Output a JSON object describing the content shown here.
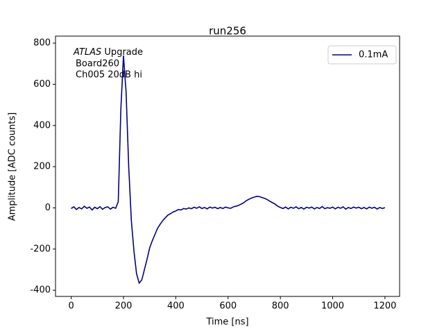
{
  "chart_data": {
    "type": "line",
    "title": "run256",
    "xlabel": "Time [ns]",
    "ylabel": "Amplitude [ADC counts]",
    "annotation": {
      "italic": "ATLAS",
      "text": "Upgrade",
      "lines": [
        "Board260",
        "Ch005 20dB hi"
      ]
    },
    "x": [
      0,
      10,
      20,
      30,
      40,
      50,
      60,
      70,
      80,
      90,
      100,
      110,
      120,
      130,
      140,
      150,
      160,
      170,
      180,
      190,
      200,
      210,
      220,
      230,
      240,
      250,
      260,
      270,
      280,
      290,
      300,
      310,
      320,
      330,
      340,
      350,
      360,
      370,
      380,
      390,
      400,
      410,
      420,
      430,
      440,
      450,
      460,
      470,
      480,
      490,
      500,
      510,
      520,
      530,
      540,
      550,
      560,
      570,
      580,
      590,
      600,
      610,
      620,
      630,
      640,
      650,
      660,
      670,
      680,
      690,
      700,
      710,
      720,
      730,
      740,
      750,
      760,
      770,
      780,
      790,
      800,
      810,
      820,
      830,
      840,
      850,
      860,
      870,
      880,
      890,
      900,
      910,
      920,
      930,
      940,
      950,
      960,
      970,
      980,
      990,
      1000,
      1010,
      1020,
      1030,
      1040,
      1050,
      1060,
      1070,
      1080,
      1090,
      1100,
      1110,
      1120,
      1130,
      1140,
      1150,
      1160,
      1170,
      1180,
      1190,
      1200
    ],
    "series": [
      {
        "name": "0.1mA",
        "color": "#000080",
        "values": [
          -3,
          5,
          -8,
          2,
          -5,
          8,
          -2,
          4,
          -10,
          3,
          -4,
          6,
          -7,
          2,
          5,
          -6,
          3,
          -2,
          30,
          480,
          740,
          560,
          200,
          -60,
          -210,
          -320,
          -365,
          -350,
          -300,
          -250,
          -195,
          -160,
          -130,
          -100,
          -80,
          -62,
          -48,
          -35,
          -28,
          -20,
          -15,
          -8,
          -10,
          -3,
          -6,
          0,
          -4,
          3,
          -2,
          5,
          -3,
          2,
          -5,
          4,
          -1,
          3,
          -4,
          2,
          -3,
          4,
          0,
          -2,
          5,
          8,
          12,
          18,
          25,
          35,
          42,
          48,
          52,
          56,
          55,
          50,
          46,
          40,
          32,
          25,
          18,
          8,
          2,
          -3,
          4,
          -5,
          3,
          -2,
          5,
          -4,
          2,
          -6,
          3,
          -1,
          4,
          -5,
          2,
          -3,
          6,
          -4,
          1,
          -2,
          4,
          -5,
          3,
          -2,
          5,
          -6,
          2,
          -3,
          4,
          -1,
          3,
          -4,
          2,
          -5,
          4,
          -2,
          3,
          -6,
          2,
          -3,
          1
        ]
      }
    ],
    "xlim": [
      -60,
      1256
    ],
    "ylim": [
      -430,
      834
    ],
    "xticks": [
      0,
      200,
      400,
      600,
      800,
      1000,
      1200
    ],
    "yticks": [
      -400,
      -200,
      0,
      200,
      400,
      600,
      800
    ],
    "legend": "upper right"
  }
}
